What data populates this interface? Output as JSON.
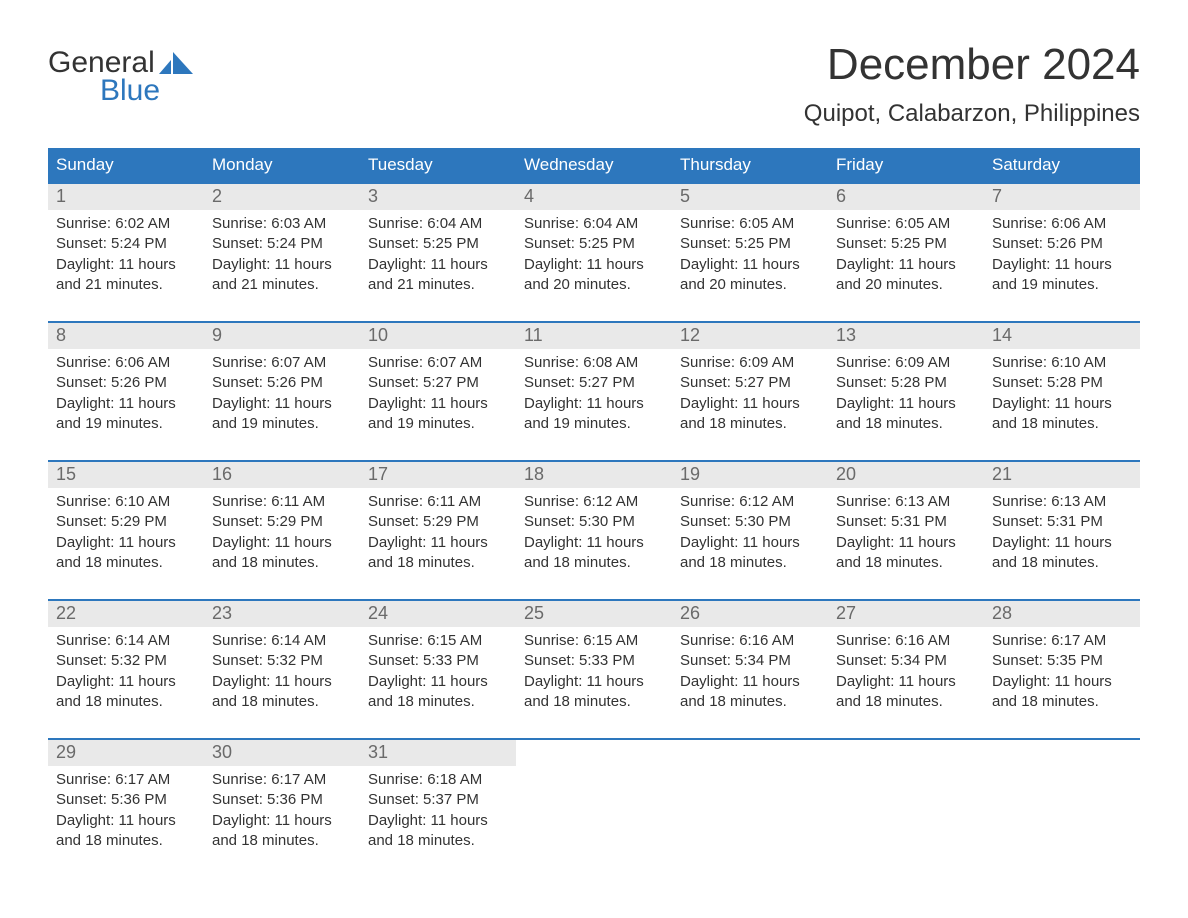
{
  "logo": {
    "word1": "General",
    "word2": "Blue"
  },
  "title": "December 2024",
  "location": "Quipot, Calabarzon, Philippines",
  "colors": {
    "header_bg": "#2d77bd",
    "header_text": "#ffffff",
    "daynum_bg": "#e9e9e9",
    "daynum_text": "#6a6a6a",
    "border": "#2d77bd",
    "body_text": "#333333",
    "logo_accent": "#2d77bd"
  },
  "day_names": [
    "Sunday",
    "Monday",
    "Tuesday",
    "Wednesday",
    "Thursday",
    "Friday",
    "Saturday"
  ],
  "labels": {
    "sunrise": "Sunrise:",
    "sunset": "Sunset:",
    "daylight": "Daylight:"
  },
  "weeks": [
    [
      {
        "num": "1",
        "sunrise": "6:02 AM",
        "sunset": "5:24 PM",
        "daylight": "11 hours and 21 minutes."
      },
      {
        "num": "2",
        "sunrise": "6:03 AM",
        "sunset": "5:24 PM",
        "daylight": "11 hours and 21 minutes."
      },
      {
        "num": "3",
        "sunrise": "6:04 AM",
        "sunset": "5:25 PM",
        "daylight": "11 hours and 21 minutes."
      },
      {
        "num": "4",
        "sunrise": "6:04 AM",
        "sunset": "5:25 PM",
        "daylight": "11 hours and 20 minutes."
      },
      {
        "num": "5",
        "sunrise": "6:05 AM",
        "sunset": "5:25 PM",
        "daylight": "11 hours and 20 minutes."
      },
      {
        "num": "6",
        "sunrise": "6:05 AM",
        "sunset": "5:25 PM",
        "daylight": "11 hours and 20 minutes."
      },
      {
        "num": "7",
        "sunrise": "6:06 AM",
        "sunset": "5:26 PM",
        "daylight": "11 hours and 19 minutes."
      }
    ],
    [
      {
        "num": "8",
        "sunrise": "6:06 AM",
        "sunset": "5:26 PM",
        "daylight": "11 hours and 19 minutes."
      },
      {
        "num": "9",
        "sunrise": "6:07 AM",
        "sunset": "5:26 PM",
        "daylight": "11 hours and 19 minutes."
      },
      {
        "num": "10",
        "sunrise": "6:07 AM",
        "sunset": "5:27 PM",
        "daylight": "11 hours and 19 minutes."
      },
      {
        "num": "11",
        "sunrise": "6:08 AM",
        "sunset": "5:27 PM",
        "daylight": "11 hours and 19 minutes."
      },
      {
        "num": "12",
        "sunrise": "6:09 AM",
        "sunset": "5:27 PM",
        "daylight": "11 hours and 18 minutes."
      },
      {
        "num": "13",
        "sunrise": "6:09 AM",
        "sunset": "5:28 PM",
        "daylight": "11 hours and 18 minutes."
      },
      {
        "num": "14",
        "sunrise": "6:10 AM",
        "sunset": "5:28 PM",
        "daylight": "11 hours and 18 minutes."
      }
    ],
    [
      {
        "num": "15",
        "sunrise": "6:10 AM",
        "sunset": "5:29 PM",
        "daylight": "11 hours and 18 minutes."
      },
      {
        "num": "16",
        "sunrise": "6:11 AM",
        "sunset": "5:29 PM",
        "daylight": "11 hours and 18 minutes."
      },
      {
        "num": "17",
        "sunrise": "6:11 AM",
        "sunset": "5:29 PM",
        "daylight": "11 hours and 18 minutes."
      },
      {
        "num": "18",
        "sunrise": "6:12 AM",
        "sunset": "5:30 PM",
        "daylight": "11 hours and 18 minutes."
      },
      {
        "num": "19",
        "sunrise": "6:12 AM",
        "sunset": "5:30 PM",
        "daylight": "11 hours and 18 minutes."
      },
      {
        "num": "20",
        "sunrise": "6:13 AM",
        "sunset": "5:31 PM",
        "daylight": "11 hours and 18 minutes."
      },
      {
        "num": "21",
        "sunrise": "6:13 AM",
        "sunset": "5:31 PM",
        "daylight": "11 hours and 18 minutes."
      }
    ],
    [
      {
        "num": "22",
        "sunrise": "6:14 AM",
        "sunset": "5:32 PM",
        "daylight": "11 hours and 18 minutes."
      },
      {
        "num": "23",
        "sunrise": "6:14 AM",
        "sunset": "5:32 PM",
        "daylight": "11 hours and 18 minutes."
      },
      {
        "num": "24",
        "sunrise": "6:15 AM",
        "sunset": "5:33 PM",
        "daylight": "11 hours and 18 minutes."
      },
      {
        "num": "25",
        "sunrise": "6:15 AM",
        "sunset": "5:33 PM",
        "daylight": "11 hours and 18 minutes."
      },
      {
        "num": "26",
        "sunrise": "6:16 AM",
        "sunset": "5:34 PM",
        "daylight": "11 hours and 18 minutes."
      },
      {
        "num": "27",
        "sunrise": "6:16 AM",
        "sunset": "5:34 PM",
        "daylight": "11 hours and 18 minutes."
      },
      {
        "num": "28",
        "sunrise": "6:17 AM",
        "sunset": "5:35 PM",
        "daylight": "11 hours and 18 minutes."
      }
    ],
    [
      {
        "num": "29",
        "sunrise": "6:17 AM",
        "sunset": "5:36 PM",
        "daylight": "11 hours and 18 minutes."
      },
      {
        "num": "30",
        "sunrise": "6:17 AM",
        "sunset": "5:36 PM",
        "daylight": "11 hours and 18 minutes."
      },
      {
        "num": "31",
        "sunrise": "6:18 AM",
        "sunset": "5:37 PM",
        "daylight": "11 hours and 18 minutes."
      },
      null,
      null,
      null,
      null
    ]
  ]
}
